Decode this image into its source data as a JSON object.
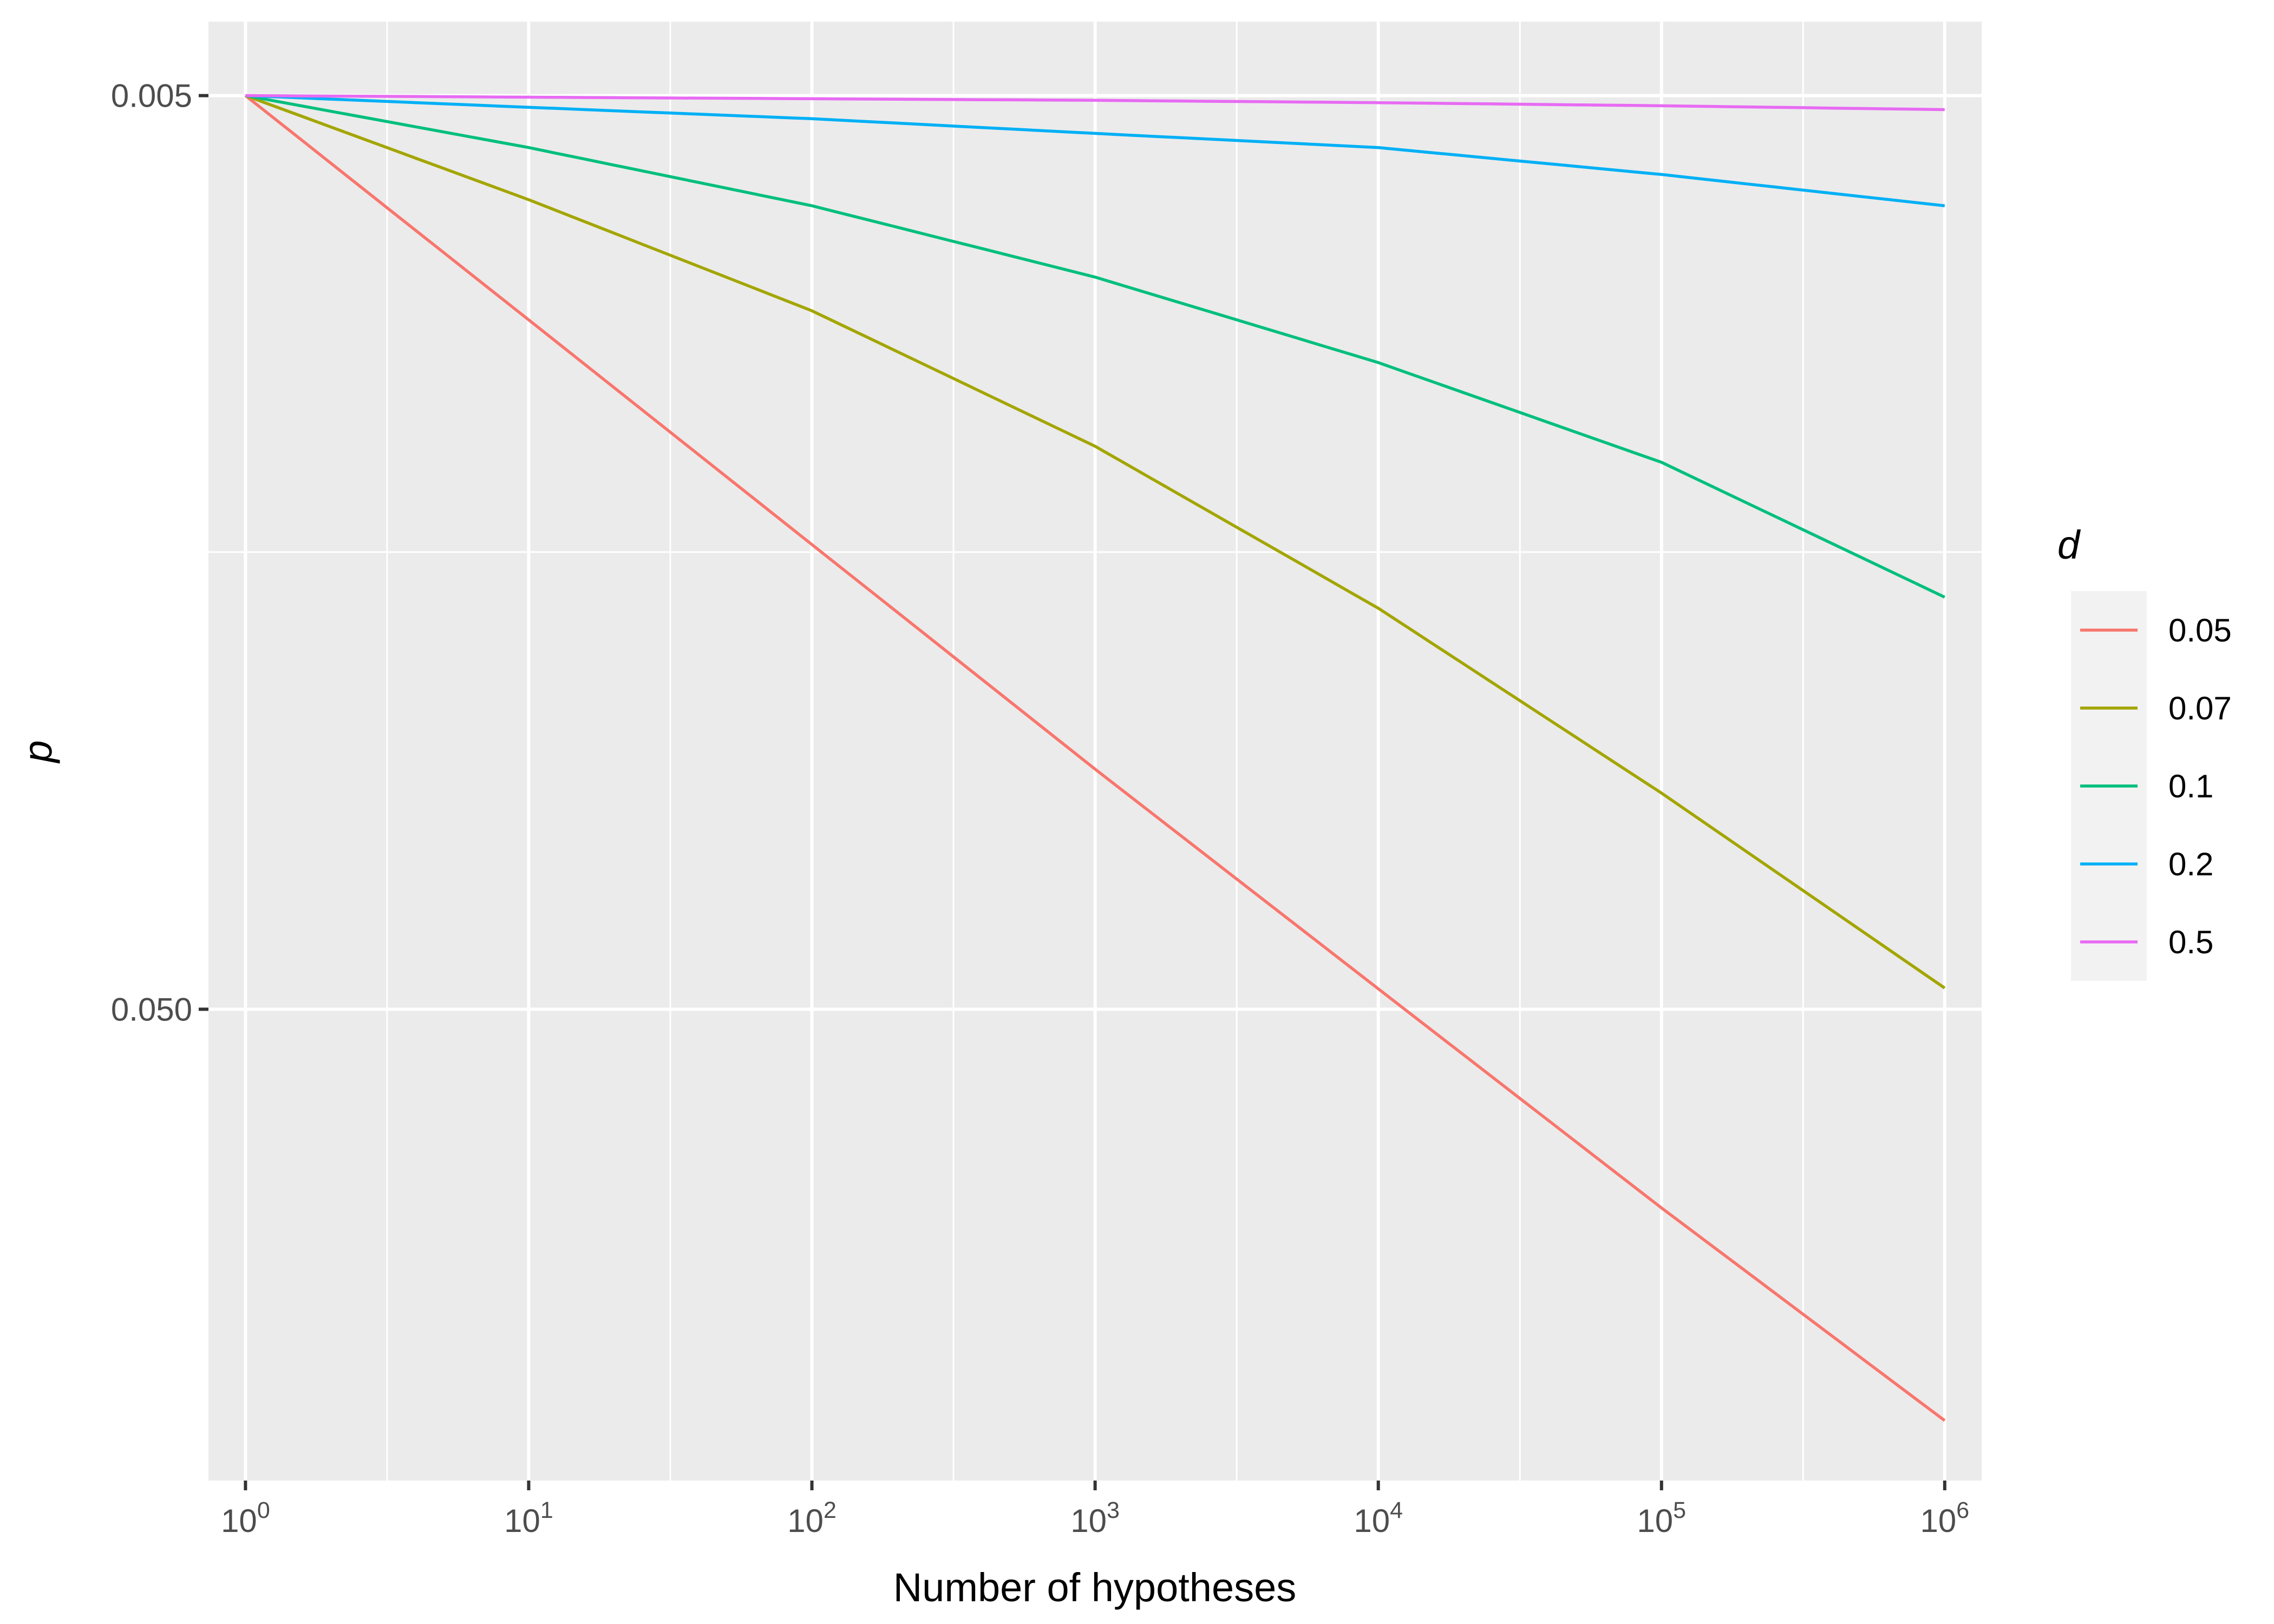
{
  "chart_data": {
    "type": "line",
    "title": "",
    "xlabel": "Number of hypotheses",
    "ylabel": "p",
    "x_scale": "log10",
    "y_scale": "log10-reversed",
    "xlim": [
      0.74,
      1350000.0
    ],
    "ylim": [
      0.00415,
      0.164
    ],
    "x_ticks": [
      {
        "value": 1,
        "base": "10",
        "exp": "0"
      },
      {
        "value": 10,
        "base": "10",
        "exp": "1"
      },
      {
        "value": 100,
        "base": "10",
        "exp": "2"
      },
      {
        "value": 1000,
        "base": "10",
        "exp": "3"
      },
      {
        "value": 10000,
        "base": "10",
        "exp": "4"
      },
      {
        "value": 100000,
        "base": "10",
        "exp": "5"
      },
      {
        "value": 1000000,
        "base": "10",
        "exp": "6"
      }
    ],
    "y_ticks": [
      {
        "value": 0.005,
        "label": "0.005"
      },
      {
        "value": 0.05,
        "label": "0.050"
      }
    ],
    "y_minor_gridlines": [
      0.0158
    ],
    "grid": true,
    "legend": {
      "title": "d",
      "placement": "right"
    },
    "x": [
      1,
      10,
      100,
      1000,
      10000,
      100000,
      1000000
    ],
    "series": [
      {
        "name": "0.05",
        "color": "#F8766D",
        "values": [
          0.005,
          0.0088,
          0.0155,
          0.0273,
          0.0475,
          0.0825,
          0.141
        ]
      },
      {
        "name": "0.07",
        "color": "#A3A500",
        "values": [
          0.005,
          0.0065,
          0.0086,
          0.0121,
          0.0182,
          0.029,
          0.0474
        ]
      },
      {
        "name": "0.1",
        "color": "#00BF7D",
        "values": [
          0.005,
          0.0057,
          0.0066,
          0.0079,
          0.0098,
          0.0126,
          0.0177
        ]
      },
      {
        "name": "0.2",
        "color": "#00B0F6",
        "values": [
          0.005,
          0.00515,
          0.0053,
          0.0055,
          0.0057,
          0.0061,
          0.0066
        ]
      },
      {
        "name": "0.5",
        "color": "#E76BF3",
        "values": [
          0.005,
          0.00502,
          0.00504,
          0.00506,
          0.00509,
          0.00513,
          0.00518
        ]
      }
    ]
  },
  "colors": {
    "panel_background": "#EBEBEB",
    "gridline": "#FFFFFF",
    "legend_key_background": "#F2F2F2"
  }
}
